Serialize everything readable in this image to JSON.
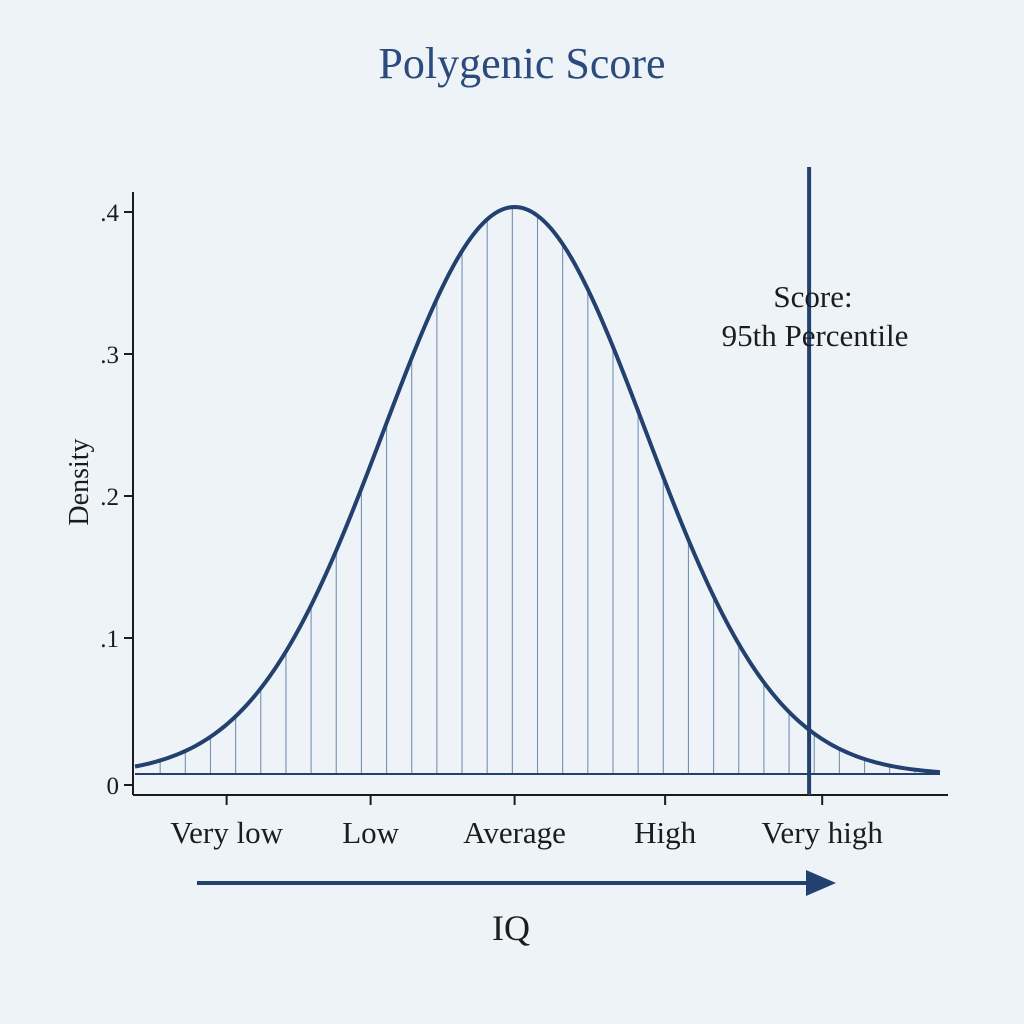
{
  "chart_data": {
    "type": "area",
    "title": "Polygenic Score",
    "xlabel": "IQ",
    "ylabel": "Density",
    "x_range": [
      -2.9,
      3.25
    ],
    "ylim": [
      0,
      0.41
    ],
    "y_ticks": [
      {
        "value": 0,
        "label": "0"
      },
      {
        "value": 0.1,
        "label": ".1"
      },
      {
        "value": 0.2,
        "label": ".2"
      },
      {
        "value": 0.3,
        "label": ".3"
      },
      {
        "value": 0.4,
        "label": ".4"
      }
    ],
    "x_categories": [
      {
        "label": "Very low",
        "x": -2.2
      },
      {
        "label": "Low",
        "x": -1.1
      },
      {
        "label": "Average",
        "x": 0
      },
      {
        "label": "High",
        "x": 1.15
      },
      {
        "label": "Very high",
        "x": 2.35
      }
    ],
    "series": [
      {
        "distribution": "normal",
        "mean": 0,
        "sd": 1,
        "peak_density": 0.4,
        "hatching": "vertical"
      }
    ],
    "marker": {
      "x": 2.25,
      "label_line1": "Score:",
      "label_line2": "95th Percentile"
    },
    "grid": false,
    "colors": {
      "curve": "#22416e",
      "hatch": "#5f7faa",
      "marker": "#22416e",
      "arrow": "#22416e",
      "title": "#2b4b7c",
      "axis": "#1c1c1c",
      "background": "#eef3f7"
    }
  }
}
